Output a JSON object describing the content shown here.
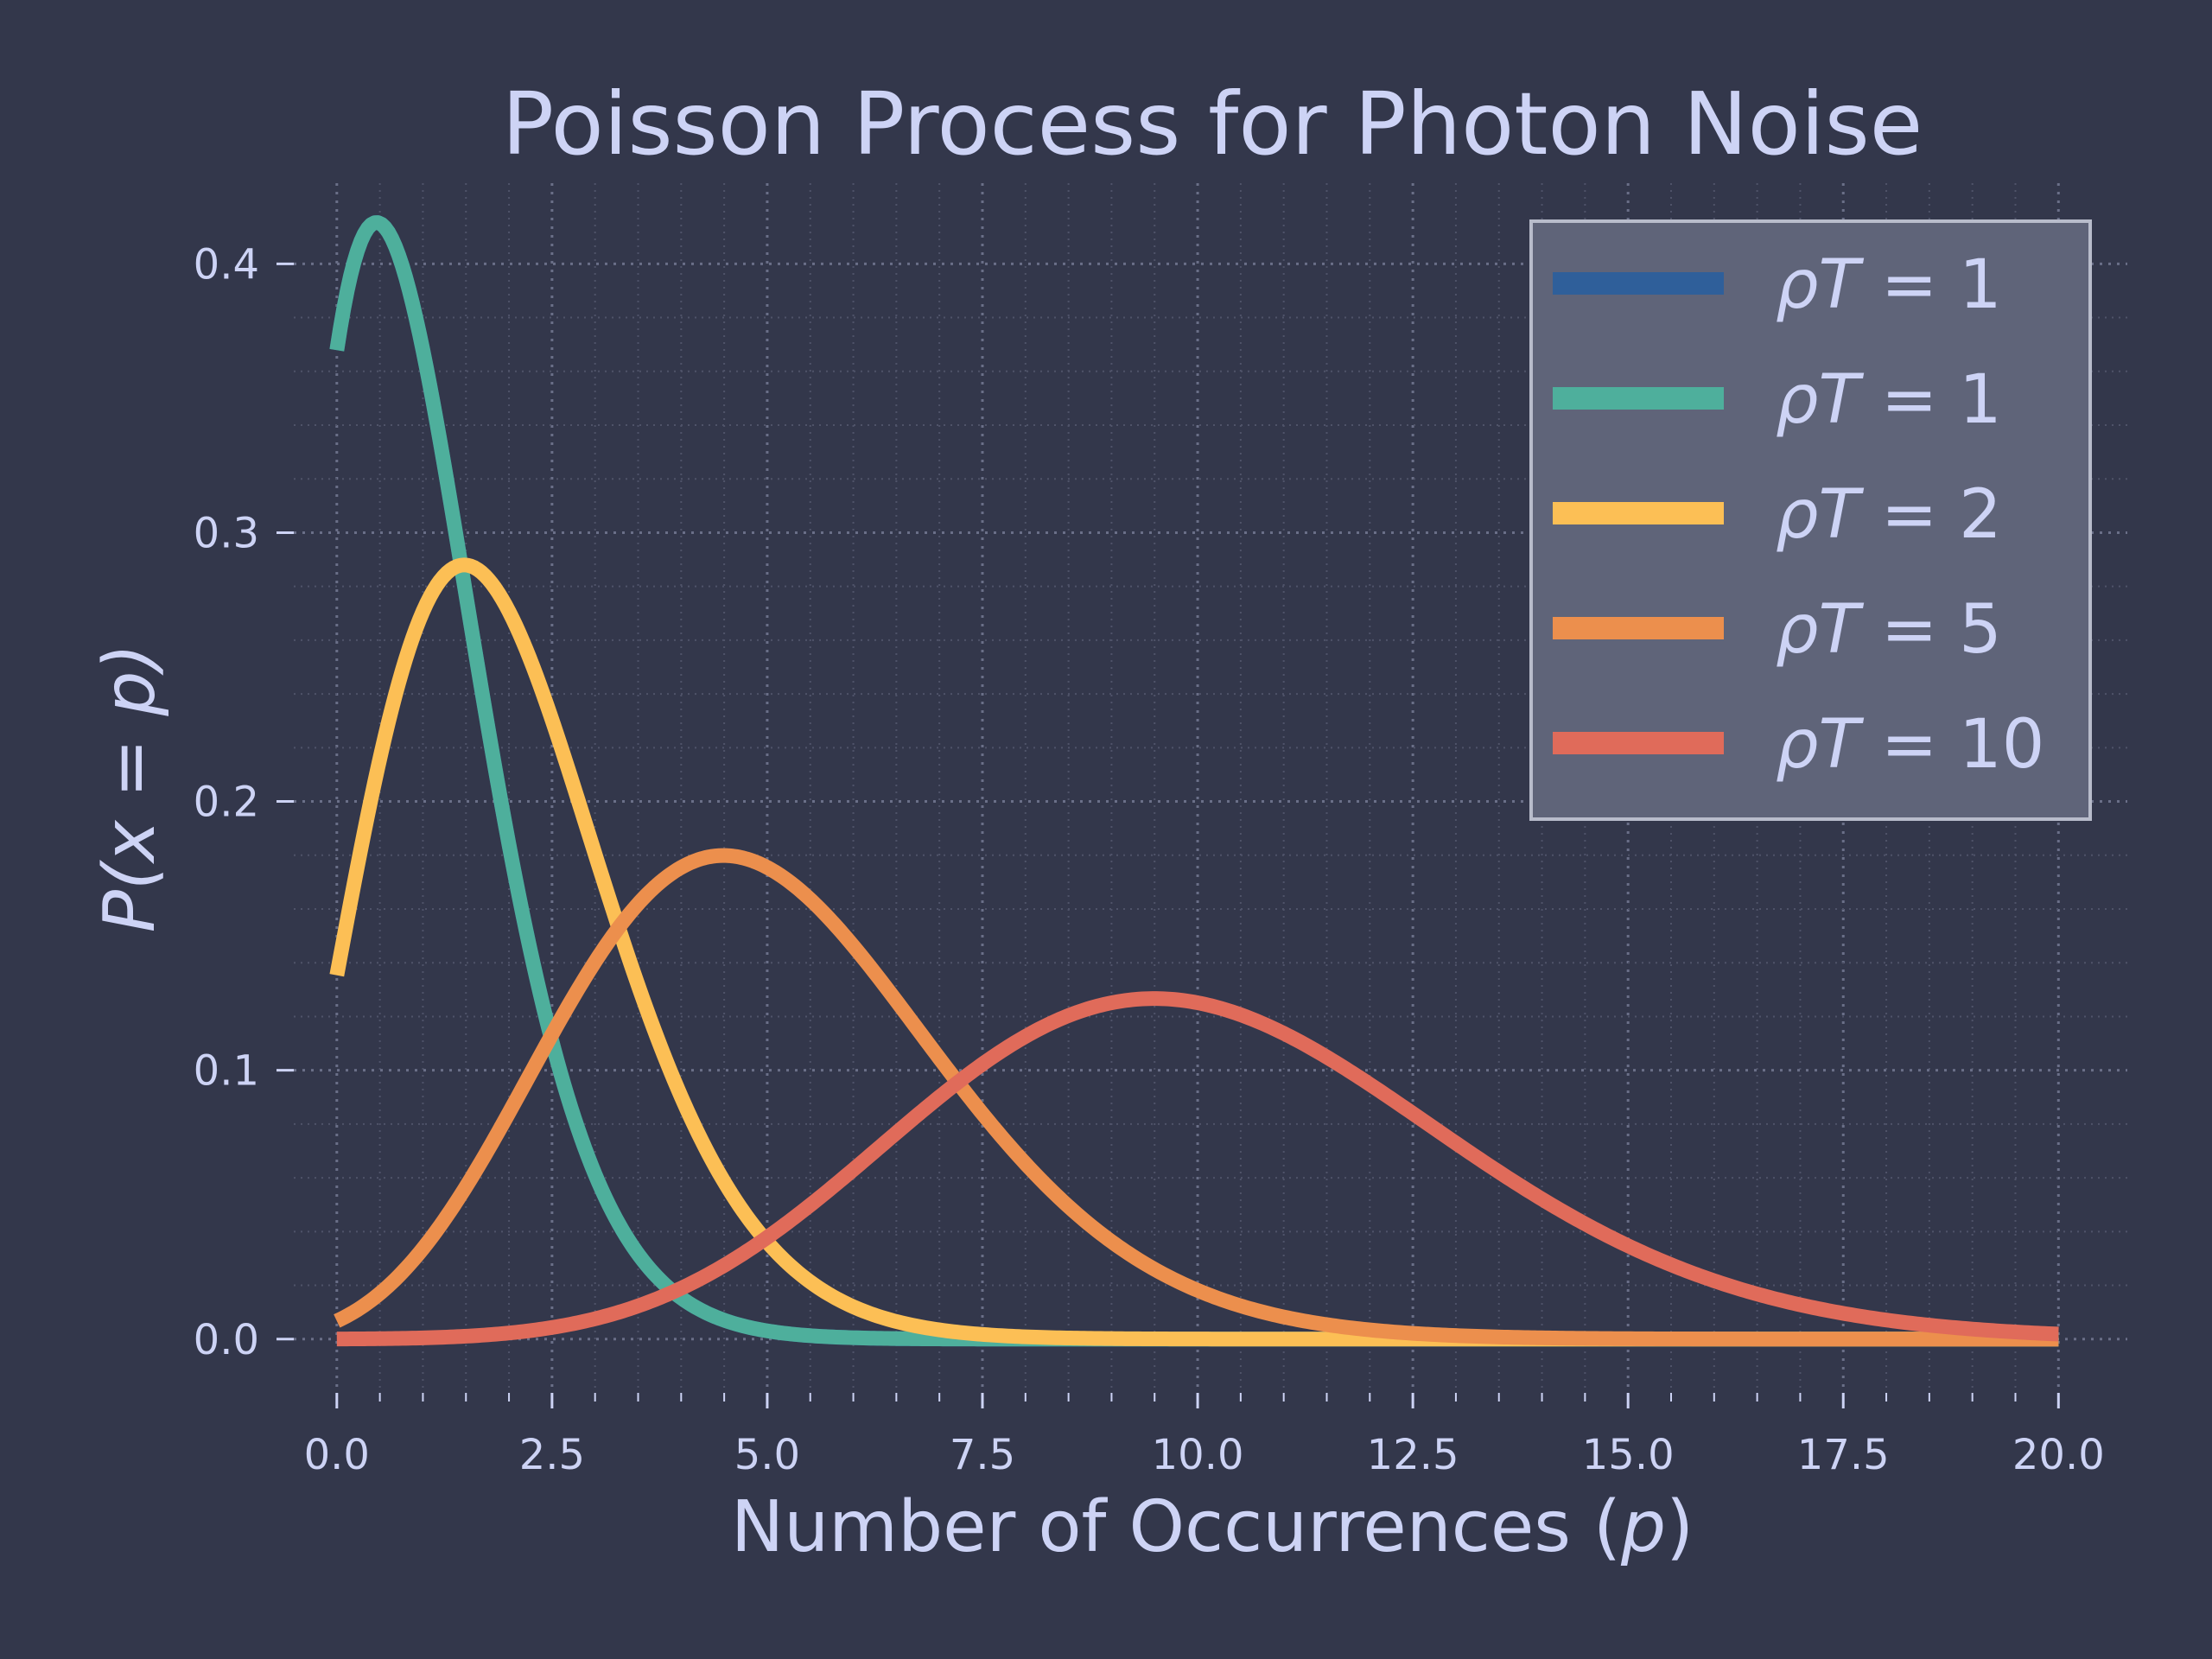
{
  "chart_data": {
    "type": "line",
    "title": "Poisson Process for Photon Noise",
    "xlabel_main": "Number of Occurrences (",
    "xlabel_var": "p",
    "xlabel_close": ")",
    "ylabel": "P(x = p)",
    "xlim": [
      -0.5,
      20.8
    ],
    "ylim": [
      -0.02,
      0.43
    ],
    "xticks": [
      0.0,
      2.5,
      5.0,
      7.5,
      10.0,
      12.5,
      15.0,
      17.5,
      20.0
    ],
    "xtick_labels": [
      "0.0",
      "2.5",
      "5.0",
      "7.5",
      "10.0",
      "12.5",
      "15.0",
      "17.5",
      "20.0"
    ],
    "yticks": [
      0.0,
      0.1,
      0.2,
      0.3,
      0.4
    ],
    "ytick_labels": [
      "0.0",
      "0.1",
      "0.2",
      "0.3",
      "0.4"
    ],
    "x_range": [
      0,
      20
    ],
    "grid": true,
    "legend_position": "top-right",
    "series": [
      {
        "name": "ρT = 1",
        "label_var": "ρT",
        "label_eq": " = ",
        "label_num": "1",
        "lambda": 1,
        "color": "#2f5f9a"
      },
      {
        "name": "ρT = 1",
        "label_var": "ρT",
        "label_eq": " = ",
        "label_num": "1",
        "lambda": 1,
        "color": "#4eaf9c"
      },
      {
        "name": "ρT = 2",
        "label_var": "ρT",
        "label_eq": " = ",
        "label_num": "2",
        "lambda": 2,
        "color": "#fcbf55"
      },
      {
        "name": "ρT = 5",
        "label_var": "ρT",
        "label_eq": " = ",
        "label_num": "5",
        "lambda": 5,
        "color": "#ec8f4d"
      },
      {
        "name": "ρT = 10",
        "label_var": "ρT",
        "label_eq": " = ",
        "label_num": "10",
        "lambda": 10,
        "color": "#e06b5a"
      }
    ]
  }
}
